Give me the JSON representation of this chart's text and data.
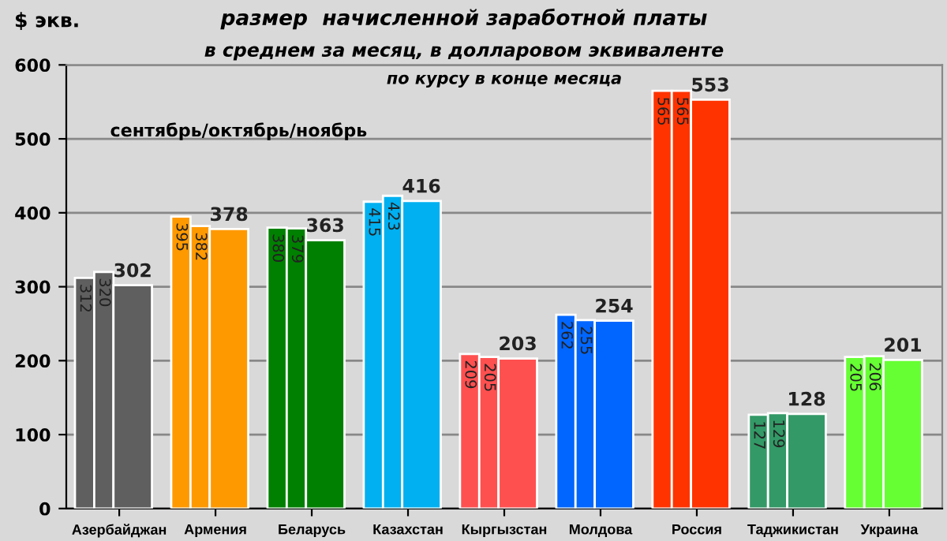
{
  "chart_data": {
    "type": "bar",
    "title": "размер  начисленной заработной платы",
    "subtitle": "в среднем за месяц, в долларовом эквиваленте",
    "ylabel": "$ экв.",
    "annotations": [
      "по курсу в конце месяца",
      "сентябрь/октябрь/ноябрь"
    ],
    "categories": [
      "Азербайджан",
      "Армения",
      "Беларусь",
      "Казахстан",
      "Кыргызстан",
      "Молдова",
      "Россия",
      "Таджикистан",
      "Украина"
    ],
    "series": [
      {
        "colors": [
          "#5f5f5f",
          "#ff9900",
          "#008000",
          "#00b0f0",
          "#ff5050",
          "#0066ff",
          "#ff3300",
          "#339966",
          "#66ff33"
        ],
        "values": [
          312,
          395,
          380,
          415,
          209,
          262,
          565,
          127,
          205
        ]
      },
      {
        "colors": [
          "#5f5f5f",
          "#ff9900",
          "#008000",
          "#00b0f0",
          "#ff5050",
          "#0066ff",
          "#ff3300",
          "#339966",
          "#66ff33"
        ],
        "values": [
          320,
          382,
          379,
          423,
          205,
          255,
          565,
          129,
          206
        ]
      },
      {
        "colors": [
          "#5f5f5f",
          "#ff9900",
          "#008000",
          "#00b0f0",
          "#ff5050",
          "#0066ff",
          "#ff3300",
          "#339966",
          "#66ff33"
        ],
        "values": [
          302,
          378,
          363,
          416,
          203,
          254,
          553,
          128,
          201
        ]
      }
    ],
    "ylim": [
      0,
      600
    ],
    "yticks": [
      0,
      100,
      200,
      300,
      400,
      500,
      600
    ],
    "grid": "y",
    "data_labels": true
  }
}
